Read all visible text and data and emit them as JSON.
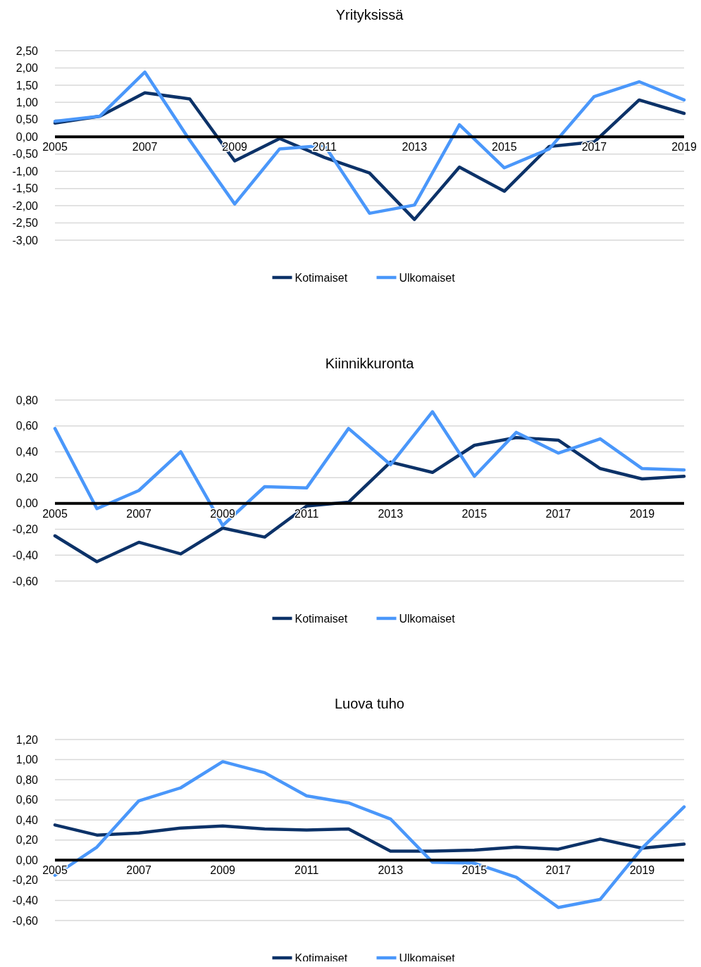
{
  "chart_data": [
    {
      "type": "line",
      "title": "Yrityksissä",
      "categories": [
        "2005",
        null,
        "2007",
        null,
        "2009",
        null,
        "2011",
        null,
        "2013",
        null,
        "2015",
        null,
        "2017",
        null,
        "2019"
      ],
      "series": [
        {
          "name": "Kotimaiset",
          "color": "#0c3268",
          "values": [
            0.4,
            0.6,
            1.28,
            1.1,
            -0.7,
            -0.05,
            -0.6,
            -1.05,
            -2.4,
            -0.88,
            -1.58,
            -0.28,
            -0.15,
            1.07,
            0.68
          ]
        },
        {
          "name": "Ulkomaiset",
          "color": "#4a97fa",
          "values": [
            0.45,
            0.6,
            1.88,
            -0.1,
            -1.95,
            -0.35,
            -0.25,
            -2.22,
            -1.98,
            0.35,
            -0.9,
            -0.35,
            1.17,
            1.6,
            1.07
          ]
        }
      ],
      "ylim": [
        -3,
        2.5
      ],
      "yticks": [
        {
          "value": 2.5,
          "label": "2,50"
        },
        {
          "value": 2,
          "label": "2,00"
        },
        {
          "value": 1.5,
          "label": "1,50"
        },
        {
          "value": 1,
          "label": "1,00"
        },
        {
          "value": 0.5,
          "label": "0,50"
        },
        {
          "value": 0,
          "label": "0,00"
        },
        {
          "value": -0.5,
          "label": "-0,50"
        },
        {
          "value": -1,
          "label": "-1,00"
        },
        {
          "value": -1.5,
          "label": "-1,50"
        },
        {
          "value": -2,
          "label": "-2,00"
        },
        {
          "value": -2.5,
          "label": "-2,50"
        },
        {
          "value": -3,
          "label": "-3,00"
        }
      ],
      "grid": "y",
      "legend": "bottom",
      "marker": "none",
      "line_style": "solid"
    },
    {
      "type": "line",
      "title": "Kiinnikkuronta",
      "categories": [
        "2005",
        null,
        "2007",
        null,
        "2009",
        null,
        "2011",
        null,
        "2013",
        null,
        "2015",
        null,
        "2017",
        null,
        "2019",
        null
      ],
      "series": [
        {
          "name": "Kotimaiset",
          "color": "#0c3268",
          "values": [
            -0.25,
            -0.45,
            -0.3,
            -0.39,
            -0.19,
            -0.26,
            -0.02,
            0.01,
            0.32,
            0.24,
            0.45,
            0.51,
            0.49,
            0.27,
            0.19,
            0.21
          ]
        },
        {
          "name": "Ulkomaiset",
          "color": "#4a97fa",
          "values": [
            0.58,
            -0.04,
            0.1,
            0.4,
            -0.17,
            0.13,
            0.12,
            0.58,
            0.3,
            0.71,
            0.21,
            0.55,
            0.39,
            0.5,
            0.27,
            0.26
          ]
        }
      ],
      "ylim": [
        -0.6,
        0.8
      ],
      "yticks": [
        {
          "value": 0.8,
          "label": "0,80"
        },
        {
          "value": 0.6,
          "label": "0,60"
        },
        {
          "value": 0.4,
          "label": "0,40"
        },
        {
          "value": 0.2,
          "label": "0,20"
        },
        {
          "value": 0,
          "label": "0,00"
        },
        {
          "value": -0.2,
          "label": "-0,20"
        },
        {
          "value": -0.4,
          "label": "-0,40"
        },
        {
          "value": -0.6,
          "label": "-0,60"
        }
      ],
      "grid": "y",
      "legend": "bottom",
      "marker": "none",
      "line_style": "solid"
    },
    {
      "type": "line",
      "title": "Luova tuho",
      "categories": [
        "2005",
        null,
        "2007",
        null,
        "2009",
        null,
        "2011",
        null,
        "2013",
        null,
        "2015",
        null,
        "2017",
        null,
        "2019",
        null
      ],
      "series": [
        {
          "name": "Kotimaiset",
          "color": "#0c3268",
          "values": [
            0.35,
            0.25,
            0.27,
            0.32,
            0.34,
            0.31,
            0.3,
            0.31,
            0.09,
            0.09,
            0.1,
            0.13,
            0.11,
            0.21,
            0.12,
            0.16
          ]
        },
        {
          "name": "Ulkomaiset",
          "color": "#4a97fa",
          "values": [
            -0.15,
            0.13,
            0.59,
            0.72,
            0.98,
            0.87,
            0.64,
            0.57,
            0.41,
            -0.02,
            -0.03,
            -0.17,
            -0.47,
            -0.39,
            0.12,
            0.53
          ]
        }
      ],
      "ylim": [
        -0.6,
        1.2
      ],
      "yticks": [
        {
          "value": 1.2,
          "label": "1,20"
        },
        {
          "value": 1,
          "label": "1,00"
        },
        {
          "value": 0.8,
          "label": "0,80"
        },
        {
          "value": 0.6,
          "label": "0,60"
        },
        {
          "value": 0.4,
          "label": "0,40"
        },
        {
          "value": 0.2,
          "label": "0,20"
        },
        {
          "value": 0,
          "label": "0,00"
        },
        {
          "value": -0.2,
          "label": "-0,20"
        },
        {
          "value": -0.4,
          "label": "-0,40"
        },
        {
          "value": -0.6,
          "label": "-0,60"
        }
      ],
      "grid": "y",
      "legend": "bottom",
      "marker": "none",
      "line_style": "solid"
    }
  ]
}
